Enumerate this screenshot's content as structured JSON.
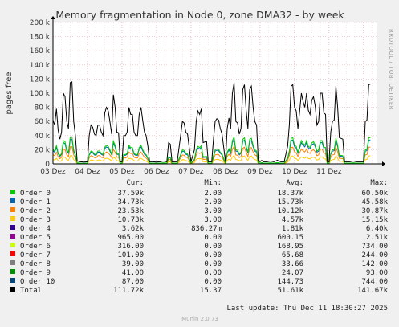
{
  "chart_data": {
    "type": "line",
    "title": "Memory fragmentation in Node 0, zone DMA32 - by week",
    "ylabel": "pages free",
    "ylim": [
      0,
      200000
    ],
    "y_ticks": [
      {
        "v": 0,
        "label": "0"
      },
      {
        "v": 20000,
        "label": "20 k"
      },
      {
        "v": 40000,
        "label": "40 k"
      },
      {
        "v": 60000,
        "label": "60 k"
      },
      {
        "v": 80000,
        "label": "80 k"
      },
      {
        "v": 100000,
        "label": "100 k"
      },
      {
        "v": 120000,
        "label": "120 k"
      },
      {
        "v": 140000,
        "label": "140 k"
      },
      {
        "v": 160000,
        "label": "160 k"
      },
      {
        "v": 180000,
        "label": "180 k"
      },
      {
        "v": 200000,
        "label": "200 k"
      }
    ],
    "x_range": [
      0,
      9.4
    ],
    "x_ticks": [
      {
        "v": 0,
        "label": "03 Dez"
      },
      {
        "v": 1,
        "label": "04 Dez"
      },
      {
        "v": 2,
        "label": "05 Dez"
      },
      {
        "v": 3,
        "label": "06 Dez"
      },
      {
        "v": 4,
        "label": "07 Dez"
      },
      {
        "v": 5,
        "label": "08 Dez"
      },
      {
        "v": 6,
        "label": "09 Dez"
      },
      {
        "v": 7,
        "label": "10 Dez"
      },
      {
        "v": 8,
        "label": "11 Dez"
      }
    ],
    "total_series": {
      "name": "Total",
      "color": "#000000",
      "points": [
        [
          0.0,
          62000
        ],
        [
          0.05,
          55000
        ],
        [
          0.1,
          78000
        ],
        [
          0.15,
          48000
        ],
        [
          0.2,
          35000
        ],
        [
          0.25,
          45000
        ],
        [
          0.3,
          100000
        ],
        [
          0.35,
          95000
        ],
        [
          0.4,
          60000
        ],
        [
          0.45,
          50000
        ],
        [
          0.5,
          115000
        ],
        [
          0.55,
          116000
        ],
        [
          0.6,
          60000
        ],
        [
          0.65,
          40000
        ],
        [
          0.7,
          4000
        ],
        [
          0.8,
          3000
        ],
        [
          0.9,
          2500
        ],
        [
          1.0,
          3000
        ],
        [
          1.05,
          40000
        ],
        [
          1.1,
          55000
        ],
        [
          1.15,
          52000
        ],
        [
          1.2,
          42000
        ],
        [
          1.25,
          40000
        ],
        [
          1.3,
          55000
        ],
        [
          1.35,
          55000
        ],
        [
          1.4,
          45000
        ],
        [
          1.45,
          40000
        ],
        [
          1.5,
          72000
        ],
        [
          1.55,
          80000
        ],
        [
          1.6,
          75000
        ],
        [
          1.65,
          60000
        ],
        [
          1.7,
          42000
        ],
        [
          1.75,
          98000
        ],
        [
          1.8,
          80000
        ],
        [
          1.85,
          45000
        ],
        [
          1.9,
          44000
        ],
        [
          1.95,
          3000
        ],
        [
          2.0,
          3000
        ],
        [
          2.05,
          40000
        ],
        [
          2.1,
          40000
        ],
        [
          2.15,
          45000
        ],
        [
          2.2,
          80000
        ],
        [
          2.25,
          70000
        ],
        [
          2.3,
          70000
        ],
        [
          2.35,
          45000
        ],
        [
          2.4,
          40000
        ],
        [
          2.45,
          40000
        ],
        [
          2.5,
          70000
        ],
        [
          2.55,
          80000
        ],
        [
          2.6,
          62000
        ],
        [
          2.65,
          45000
        ],
        [
          2.7,
          40000
        ],
        [
          2.75,
          25000
        ],
        [
          2.8,
          3000
        ],
        [
          2.9,
          3000
        ],
        [
          3.0,
          2500
        ],
        [
          3.1,
          3000
        ],
        [
          3.2,
          4000
        ],
        [
          3.3,
          3000
        ],
        [
          3.35,
          30000
        ],
        [
          3.4,
          28000
        ],
        [
          3.45,
          3000
        ],
        [
          3.55,
          3000
        ],
        [
          3.6,
          3000
        ],
        [
          3.7,
          40000
        ],
        [
          3.75,
          60000
        ],
        [
          3.8,
          58000
        ],
        [
          3.85,
          45000
        ],
        [
          3.9,
          42000
        ],
        [
          4.0,
          3000
        ],
        [
          4.1,
          20000
        ],
        [
          4.15,
          60000
        ],
        [
          4.2,
          75000
        ],
        [
          4.25,
          70000
        ],
        [
          4.3,
          78000
        ],
        [
          4.35,
          30000
        ],
        [
          4.45,
          32000
        ],
        [
          4.5,
          3000
        ],
        [
          4.6,
          3000
        ],
        [
          4.65,
          35000
        ],
        [
          4.7,
          60000
        ],
        [
          4.75,
          64000
        ],
        [
          4.8,
          62000
        ],
        [
          4.85,
          50000
        ],
        [
          4.9,
          42000
        ],
        [
          5.0,
          3000
        ],
        [
          5.05,
          50000
        ],
        [
          5.1,
          65000
        ],
        [
          5.15,
          50000
        ],
        [
          5.2,
          100000
        ],
        [
          5.25,
          115000
        ],
        [
          5.3,
          60000
        ],
        [
          5.35,
          58000
        ],
        [
          5.4,
          42000
        ],
        [
          5.45,
          50000
        ],
        [
          5.5,
          105000
        ],
        [
          5.55,
          112000
        ],
        [
          5.6,
          75000
        ],
        [
          5.65,
          50000
        ],
        [
          5.7,
          105000
        ],
        [
          5.75,
          110000
        ],
        [
          5.8,
          80000
        ],
        [
          5.85,
          60000
        ],
        [
          5.9,
          55000
        ],
        [
          5.95,
          5000
        ],
        [
          6.0,
          3000
        ],
        [
          6.05,
          5000
        ],
        [
          6.1,
          3000
        ],
        [
          6.2,
          3000
        ],
        [
          6.3,
          4000
        ],
        [
          6.4,
          3000
        ],
        [
          6.5,
          5000
        ],
        [
          6.6,
          3000
        ],
        [
          6.7,
          3000
        ],
        [
          6.8,
          25000
        ],
        [
          6.85,
          55000
        ],
        [
          6.9,
          110000
        ],
        [
          6.95,
          112000
        ],
        [
          7.0,
          80000
        ],
        [
          7.05,
          75000
        ],
        [
          7.1,
          50000
        ],
        [
          7.15,
          75000
        ],
        [
          7.2,
          100000
        ],
        [
          7.25,
          88000
        ],
        [
          7.3,
          80000
        ],
        [
          7.35,
          100000
        ],
        [
          7.4,
          76000
        ],
        [
          7.45,
          70000
        ],
        [
          7.5,
          90000
        ],
        [
          7.55,
          95000
        ],
        [
          7.6,
          82000
        ],
        [
          7.65,
          55000
        ],
        [
          7.7,
          60000
        ],
        [
          7.75,
          100000
        ],
        [
          7.8,
          100000
        ],
        [
          7.85,
          72000
        ],
        [
          7.9,
          70000
        ],
        [
          7.95,
          3000
        ],
        [
          8.0,
          3000
        ],
        [
          8.05,
          45000
        ],
        [
          8.1,
          60000
        ],
        [
          8.15,
          62000
        ],
        [
          8.2,
          110000
        ],
        [
          8.25,
          80000
        ],
        [
          8.3,
          37000
        ],
        [
          8.35,
          36000
        ],
        [
          8.4,
          35000
        ],
        [
          8.45,
          3000
        ],
        [
          8.5,
          3000
        ],
        [
          8.6,
          3000
        ],
        [
          8.7,
          4000
        ],
        [
          8.8,
          3000
        ],
        [
          8.9,
          3000
        ],
        [
          9.0,
          3000
        ],
        [
          9.05,
          60000
        ],
        [
          9.1,
          62000
        ],
        [
          9.15,
          112000
        ],
        [
          9.2,
          113000
        ]
      ]
    },
    "order_series": [
      {
        "name": "Order 0",
        "color": "#00cc00",
        "scale": 0.33
      },
      {
        "name": "Order 1",
        "color": "#0066b3",
        "scale": 0.3
      },
      {
        "name": "Order 2",
        "color": "#ff8000",
        "scale": 0.21
      },
      {
        "name": "Order 3",
        "color": "#ffcc00",
        "scale": 0.1
      }
    ]
  },
  "table": {
    "headers": {
      "cur": "Cur:",
      "min": "Min:",
      "avg": "Avg:",
      "max": "Max:"
    },
    "rows": [
      {
        "name": "Order 0",
        "color": "#00cc00",
        "cur": "37.59k",
        "min": "2.00",
        "avg": "18.37k",
        "max": "60.50k"
      },
      {
        "name": "Order 1",
        "color": "#0066b3",
        "cur": "34.73k",
        "min": "2.00",
        "avg": "15.73k",
        "max": "45.58k"
      },
      {
        "name": "Order 2",
        "color": "#ff8000",
        "cur": "23.53k",
        "min": "3.00",
        "avg": "10.12k",
        "max": "30.87k"
      },
      {
        "name": "Order 3",
        "color": "#ffcc00",
        "cur": "10.73k",
        "min": "3.00",
        "avg": "4.57k",
        "max": "15.15k"
      },
      {
        "name": "Order 4",
        "color": "#330099",
        "cur": "3.62k",
        "min": "836.27m",
        "avg": "1.81k",
        "max": "6.40k"
      },
      {
        "name": "Order 5",
        "color": "#990099",
        "cur": "965.00",
        "min": "0.00",
        "avg": "600.15",
        "max": "2.51k"
      },
      {
        "name": "Order 6",
        "color": "#ccff00",
        "cur": "316.00",
        "min": "0.00",
        "avg": "168.95",
        "max": "734.00"
      },
      {
        "name": "Order 7",
        "color": "#ff0000",
        "cur": "101.00",
        "min": "0.00",
        "avg": "65.68",
        "max": "244.00"
      },
      {
        "name": "Order 8",
        "color": "#808080",
        "cur": "39.00",
        "min": "0.00",
        "avg": "33.66",
        "max": "142.00"
      },
      {
        "name": "Order 9",
        "color": "#008f00",
        "cur": "41.00",
        "min": "0.00",
        "avg": "24.07",
        "max": "93.00"
      },
      {
        "name": "Order 10",
        "color": "#00487d",
        "cur": "87.00",
        "min": "0.00",
        "avg": "144.73",
        "max": "744.00"
      },
      {
        "name": "Total",
        "color": "#000000",
        "cur": "111.72k",
        "min": "15.37",
        "avg": "51.61k",
        "max": "141.67k"
      }
    ]
  },
  "footer": {
    "last_update": "Last update: Thu Dec 11 18:30:27 2025",
    "version": "Munin 2.0.73"
  },
  "side_label": "RRDTOOL / TOBI OETIKER",
  "colors": {
    "background": "#f0f0f0",
    "plot_bg": "#ffffff",
    "grid": "#e8b4b4",
    "axis": "#000000"
  }
}
